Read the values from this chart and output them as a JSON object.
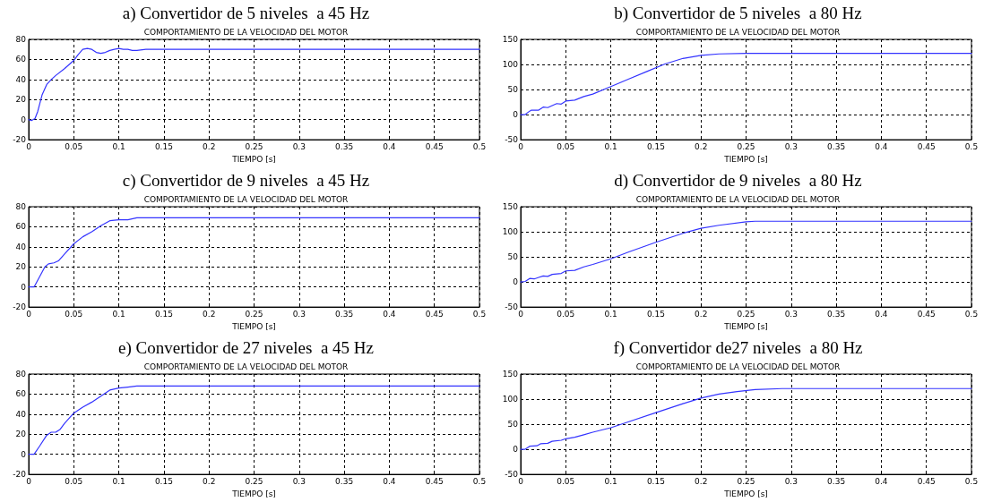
{
  "chart_data": [
    {
      "type": "line",
      "title": "a) Convertidor de 5 niveles  a 45 Hz",
      "subtitle": "COMPORTAMIENTO DE LA VELOCIDAD DEL MOTOR",
      "xlabel": "TIEMPO [s]",
      "x": [
        0,
        0.003,
        0.007,
        0.01,
        0.015,
        0.02,
        0.025,
        0.03,
        0.04,
        0.05,
        0.055,
        0.06,
        0.065,
        0.07,
        0.075,
        0.08,
        0.085,
        0.09,
        0.095,
        0.1,
        0.105,
        0.11,
        0.115,
        0.12,
        0.13,
        0.15,
        0.16,
        0.5
      ],
      "values": [
        0,
        -1,
        1,
        8,
        25,
        35,
        40,
        44,
        51,
        59,
        65,
        70,
        71,
        70,
        67,
        66,
        67,
        69,
        70,
        71,
        70,
        70,
        69,
        69,
        70,
        70,
        70,
        70
      ],
      "color": "#3333ff",
      "xlim": [
        0,
        0.5
      ],
      "ylim": [
        -20,
        80
      ],
      "xticks": [
        0,
        0.05,
        0.1,
        0.15,
        0.2,
        0.25,
        0.3,
        0.35,
        0.4,
        0.45,
        0.5
      ],
      "yticks": [
        -20,
        0,
        20,
        40,
        60,
        80
      ],
      "grid": true
    },
    {
      "type": "line",
      "title": "b) Convertidor de 5 niveles  a 80 Hz",
      "subtitle": "COMPORTAMIENTO DE LA VELOCIDAD DEL MOTOR",
      "xlabel": "TIEMPO [s]",
      "x": [
        0,
        0.005,
        0.01,
        0.012,
        0.02,
        0.025,
        0.03,
        0.035,
        0.04,
        0.045,
        0.05,
        0.06,
        0.07,
        0.08,
        0.1,
        0.12,
        0.14,
        0.16,
        0.18,
        0.2,
        0.22,
        0.25,
        0.5
      ],
      "values": [
        0,
        0,
        7,
        9,
        9,
        15,
        14,
        18,
        22,
        21,
        27,
        29,
        36,
        41,
        56,
        71,
        86,
        101,
        112,
        118,
        121,
        122,
        122
      ],
      "color": "#3333ff",
      "xlim": [
        0,
        0.5
      ],
      "ylim": [
        -50,
        150
      ],
      "xticks": [
        0,
        0.05,
        0.1,
        0.15,
        0.2,
        0.25,
        0.3,
        0.35,
        0.4,
        0.45,
        0.5
      ],
      "yticks": [
        -50,
        0,
        50,
        100,
        150
      ],
      "grid": true
    },
    {
      "type": "line",
      "title": "c) Convertidor de 9 niveles  a 45 Hz",
      "subtitle": "COMPORTAMIENTO DE LA VELOCIDAD DEL MOTOR",
      "xlabel": "TIEMPO [s]",
      "x": [
        0,
        0.006,
        0.012,
        0.018,
        0.022,
        0.028,
        0.033,
        0.04,
        0.05,
        0.06,
        0.07,
        0.08,
        0.09,
        0.1,
        0.11,
        0.12,
        0.5
      ],
      "values": [
        0,
        0,
        10,
        20,
        23,
        24,
        26,
        33,
        43,
        50,
        55,
        61,
        66,
        67,
        67,
        69,
        69
      ],
      "color": "#3333ff",
      "xlim": [
        0,
        0.5
      ],
      "ylim": [
        -20,
        80
      ],
      "xticks": [
        0,
        0.05,
        0.1,
        0.15,
        0.2,
        0.25,
        0.3,
        0.35,
        0.4,
        0.45,
        0.5
      ],
      "yticks": [
        -20,
        0,
        20,
        40,
        60,
        80
      ],
      "grid": true
    },
    {
      "type": "line",
      "title": "d) Convertidor de 9 niveles  a 80 Hz",
      "subtitle": "COMPORTAMIENTO DE LA VELOCIDAD DEL MOTOR",
      "xlabel": "TIEMPO [s]",
      "x": [
        0,
        0.005,
        0.01,
        0.015,
        0.02,
        0.025,
        0.03,
        0.035,
        0.045,
        0.05,
        0.06,
        0.07,
        0.08,
        0.1,
        0.12,
        0.15,
        0.18,
        0.2,
        0.22,
        0.25,
        0.26,
        0.5
      ],
      "values": [
        0,
        1,
        7,
        6,
        9,
        12,
        11,
        15,
        17,
        22,
        23,
        30,
        35,
        46,
        60,
        79,
        97,
        107,
        113,
        120,
        121,
        121
      ],
      "color": "#3333ff",
      "xlim": [
        0,
        0.5
      ],
      "ylim": [
        -50,
        150
      ],
      "xticks": [
        0,
        0.05,
        0.1,
        0.15,
        0.2,
        0.25,
        0.3,
        0.35,
        0.4,
        0.45,
        0.5
      ],
      "yticks": [
        -50,
        0,
        50,
        100,
        150
      ],
      "grid": true
    },
    {
      "type": "line",
      "title": "e) Convertidor de 27 niveles  a 45 Hz",
      "subtitle": "COMPORTAMIENTO DE LA VELOCIDAD DEL MOTOR",
      "xlabel": "TIEMPO [s]",
      "x": [
        0,
        0.006,
        0.012,
        0.02,
        0.025,
        0.03,
        0.035,
        0.04,
        0.05,
        0.06,
        0.07,
        0.08,
        0.09,
        0.1,
        0.11,
        0.12,
        0.5
      ],
      "values": [
        0,
        0,
        8,
        19,
        22,
        22,
        25,
        31,
        41,
        47,
        52,
        58,
        64,
        66,
        67,
        68,
        68
      ],
      "color": "#3333ff",
      "xlim": [
        0,
        0.5
      ],
      "ylim": [
        -20,
        80
      ],
      "xticks": [
        0,
        0.05,
        0.1,
        0.15,
        0.2,
        0.25,
        0.3,
        0.35,
        0.4,
        0.45,
        0.5
      ],
      "yticks": [
        -20,
        0,
        20,
        40,
        60,
        80
      ],
      "grid": true
    },
    {
      "type": "line",
      "title": "f) Convertidor de27 niveles  a 80 Hz",
      "subtitle": "COMPORTAMIENTO DE LA VELOCIDAD DEL MOTOR",
      "xlabel": "TIEMPO [s]",
      "x": [
        0,
        0.005,
        0.01,
        0.018,
        0.022,
        0.03,
        0.035,
        0.045,
        0.05,
        0.06,
        0.07,
        0.08,
        0.1,
        0.12,
        0.15,
        0.18,
        0.2,
        0.22,
        0.24,
        0.26,
        0.29,
        0.5
      ],
      "values": [
        0,
        0,
        6,
        7,
        11,
        12,
        16,
        18,
        21,
        24,
        29,
        34,
        43,
        55,
        73,
        91,
        102,
        110,
        115,
        119,
        121,
        121
      ],
      "color": "#3333ff",
      "xlim": [
        0,
        0.5
      ],
      "ylim": [
        -50,
        150
      ],
      "xticks": [
        0,
        0.05,
        0.1,
        0.15,
        0.2,
        0.25,
        0.3,
        0.35,
        0.4,
        0.45,
        0.5
      ],
      "yticks": [
        -50,
        0,
        50,
        100,
        150
      ],
      "grid": true
    }
  ]
}
